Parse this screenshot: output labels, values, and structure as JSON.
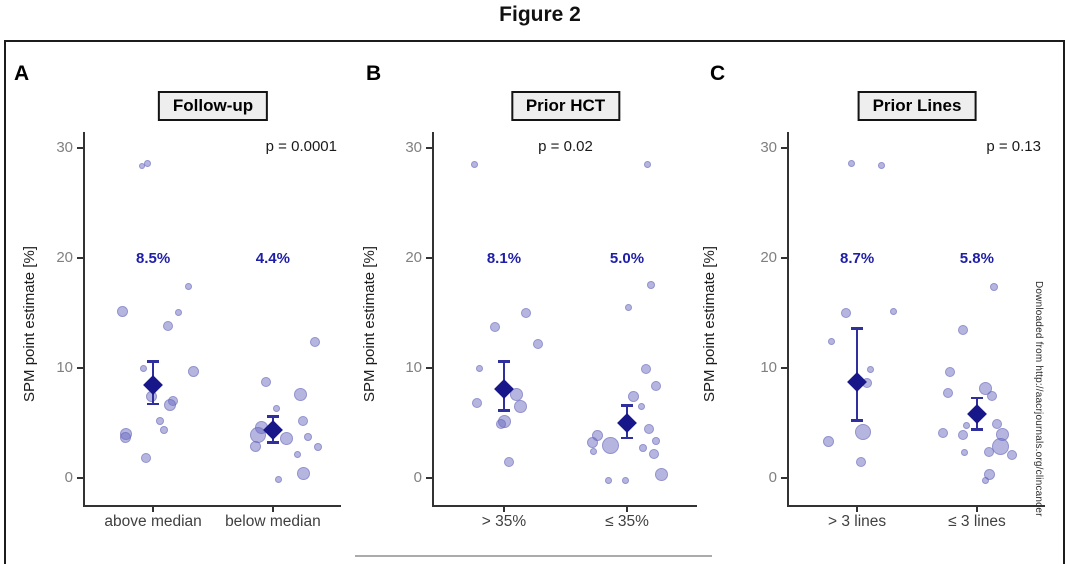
{
  "title": "Figure 2",
  "watermark": "Downloaded from http://aacrjournals.org/clincancer",
  "colors": {
    "dot_fill": "rgba(107,107,193,0.5)",
    "dot_edge": "rgba(95,95,180,0.4)",
    "diamond": "#17178a",
    "errorbar": "#2f2f9d",
    "estimate_text": "#1e1ea8",
    "p_text": "#1a1a1a",
    "strip_bg": "#eeeeee",
    "strip_border": "#141414",
    "axis_line": "#333333",
    "ytick_text": "#808080",
    "xtick_text": "#404040",
    "caption_line": "#ababab",
    "watermark_text": "#2b2b2b"
  },
  "chart_data": [
    {
      "type": "scatter",
      "panel": "A",
      "strip_title": "Follow-up",
      "p_value_label": "p = 0.0001",
      "p_align": "right",
      "ylabel": "SPM point estimate [%]",
      "yticks": [
        0,
        10,
        20,
        30
      ],
      "ylim": [
        -2.45,
        31.45
      ],
      "point_format": [
        "value_pct",
        "x_jitter_px",
        "diameter_px"
      ],
      "groups": [
        {
          "label": "above median",
          "estimate_label": "8.5%",
          "estimate": 8.5,
          "ci": [
            6.7,
            10.6
          ],
          "points": [
            [
              28.6,
              -6,
              7
            ],
            [
              28.4,
              -11,
              6
            ],
            [
              17.4,
              35,
              7
            ],
            [
              15.1,
              -31,
              11
            ],
            [
              15.0,
              25,
              7
            ],
            [
              13.8,
              15,
              10
            ],
            [
              10.0,
              -10,
              7
            ],
            [
              9.7,
              40,
              11
            ],
            [
              7.4,
              -2,
              11
            ],
            [
              7.0,
              20,
              10
            ],
            [
              6.6,
              17,
              12
            ],
            [
              5.2,
              7,
              8
            ],
            [
              4.4,
              11,
              8
            ],
            [
              4.0,
              -27,
              12
            ],
            [
              3.7,
              -28,
              11
            ],
            [
              1.8,
              -7,
              10
            ]
          ]
        },
        {
          "label": "below median",
          "estimate_label": "4.4%",
          "estimate": 4.4,
          "ci": [
            3.2,
            5.6
          ],
          "points": [
            [
              12.4,
              42,
              10
            ],
            [
              8.7,
              -7,
              10
            ],
            [
              7.6,
              28,
              13
            ],
            [
              6.3,
              4,
              7
            ],
            [
              5.2,
              30,
              10
            ],
            [
              4.6,
              -11,
              13
            ],
            [
              3.9,
              -15,
              16
            ],
            [
              3.6,
              14,
              13
            ],
            [
              3.7,
              35,
              8
            ],
            [
              2.9,
              -17,
              11
            ],
            [
              2.8,
              45,
              8
            ],
            [
              2.1,
              25,
              7
            ],
            [
              0.4,
              31,
              13
            ],
            [
              -0.1,
              6,
              7
            ]
          ]
        }
      ]
    },
    {
      "type": "scatter",
      "panel": "B",
      "strip_title": "Prior HCT",
      "p_value_label": "p = 0.02",
      "p_align": "center",
      "ylabel": "SPM point estimate [%]",
      "yticks": [
        0,
        10,
        20,
        30
      ],
      "ylim": [
        -2.45,
        31.45
      ],
      "point_format": [
        "value_pct",
        "x_jitter_px",
        "diameter_px"
      ],
      "groups": [
        {
          "label": "> 35%",
          "estimate_label": "8.1%",
          "estimate": 8.1,
          "ci": [
            6.1,
            10.6
          ],
          "points": [
            [
              28.5,
              -29,
              7
            ],
            [
              15.0,
              22,
              10
            ],
            [
              13.7,
              -9,
              10
            ],
            [
              12.2,
              34,
              10
            ],
            [
              10.0,
              -24,
              7
            ],
            [
              7.6,
              13,
              13
            ],
            [
              6.8,
              -27,
              10
            ],
            [
              6.5,
              17,
              13
            ],
            [
              5.1,
              1,
              13
            ],
            [
              4.9,
              -3,
              10
            ],
            [
              1.5,
              5,
              10
            ]
          ]
        },
        {
          "label": "≤ 35%",
          "estimate_label": "5.0%",
          "estimate": 5.0,
          "ci": [
            3.6,
            6.6
          ],
          "points": [
            [
              28.5,
              20,
              7
            ],
            [
              17.5,
              24,
              8
            ],
            [
              15.5,
              1,
              7
            ],
            [
              9.9,
              19,
              10
            ],
            [
              8.4,
              29,
              10
            ],
            [
              7.4,
              6,
              11
            ],
            [
              6.5,
              14,
              7
            ],
            [
              4.5,
              22,
              10
            ],
            [
              3.9,
              -30,
              11
            ],
            [
              3.4,
              29,
              8
            ],
            [
              3.2,
              -35,
              11
            ],
            [
              3.0,
              -17,
              17
            ],
            [
              2.7,
              16,
              8
            ],
            [
              2.4,
              -34,
              7
            ],
            [
              2.2,
              27,
              10
            ],
            [
              0.3,
              34,
              13
            ],
            [
              -0.2,
              -2,
              7
            ],
            [
              -0.2,
              -19,
              7
            ]
          ]
        }
      ]
    },
    {
      "type": "scatter",
      "panel": "C",
      "strip_title": "Prior Lines",
      "p_value_label": "p = 0.13",
      "p_align": "right",
      "ylabel": "SPM point estimate [%]",
      "yticks": [
        0,
        10,
        20,
        30
      ],
      "ylim": [
        -2.45,
        31.45
      ],
      "point_format": [
        "value_pct",
        "x_jitter_px",
        "diameter_px"
      ],
      "groups": [
        {
          "label": "> 3 lines",
          "estimate_label": "8.7%",
          "estimate": 8.7,
          "ci": [
            5.2,
            13.6
          ],
          "points": [
            [
              28.6,
              -6,
              7
            ],
            [
              28.4,
              24,
              7
            ],
            [
              15.0,
              -11,
              10
            ],
            [
              15.1,
              36,
              7
            ],
            [
              12.4,
              -26,
              7
            ],
            [
              9.9,
              13,
              7
            ],
            [
              8.6,
              10,
              10
            ],
            [
              4.2,
              6,
              16
            ],
            [
              3.3,
              -29,
              11
            ],
            [
              1.5,
              4,
              10
            ]
          ]
        },
        {
          "label": "≤ 3 lines",
          "estimate_label": "5.8%",
          "estimate": 5.8,
          "ci": [
            4.4,
            7.3
          ],
          "points": [
            [
              17.4,
              17,
              8
            ],
            [
              13.5,
              -14,
              10
            ],
            [
              9.6,
              -27,
              10
            ],
            [
              8.1,
              9,
              13
            ],
            [
              7.7,
              -29,
              10
            ],
            [
              7.5,
              15,
              10
            ],
            [
              4.9,
              20,
              10
            ],
            [
              4.8,
              -10,
              7
            ],
            [
              4.1,
              -34,
              10
            ],
            [
              3.9,
              -14,
              10
            ],
            [
              4.0,
              26,
              13
            ],
            [
              2.9,
              24,
              17
            ],
            [
              2.4,
              12,
              10
            ],
            [
              2.3,
              -12,
              7
            ],
            [
              2.1,
              35,
              10
            ],
            [
              0.3,
              13,
              11
            ],
            [
              -0.2,
              9,
              7
            ]
          ]
        }
      ]
    }
  ]
}
